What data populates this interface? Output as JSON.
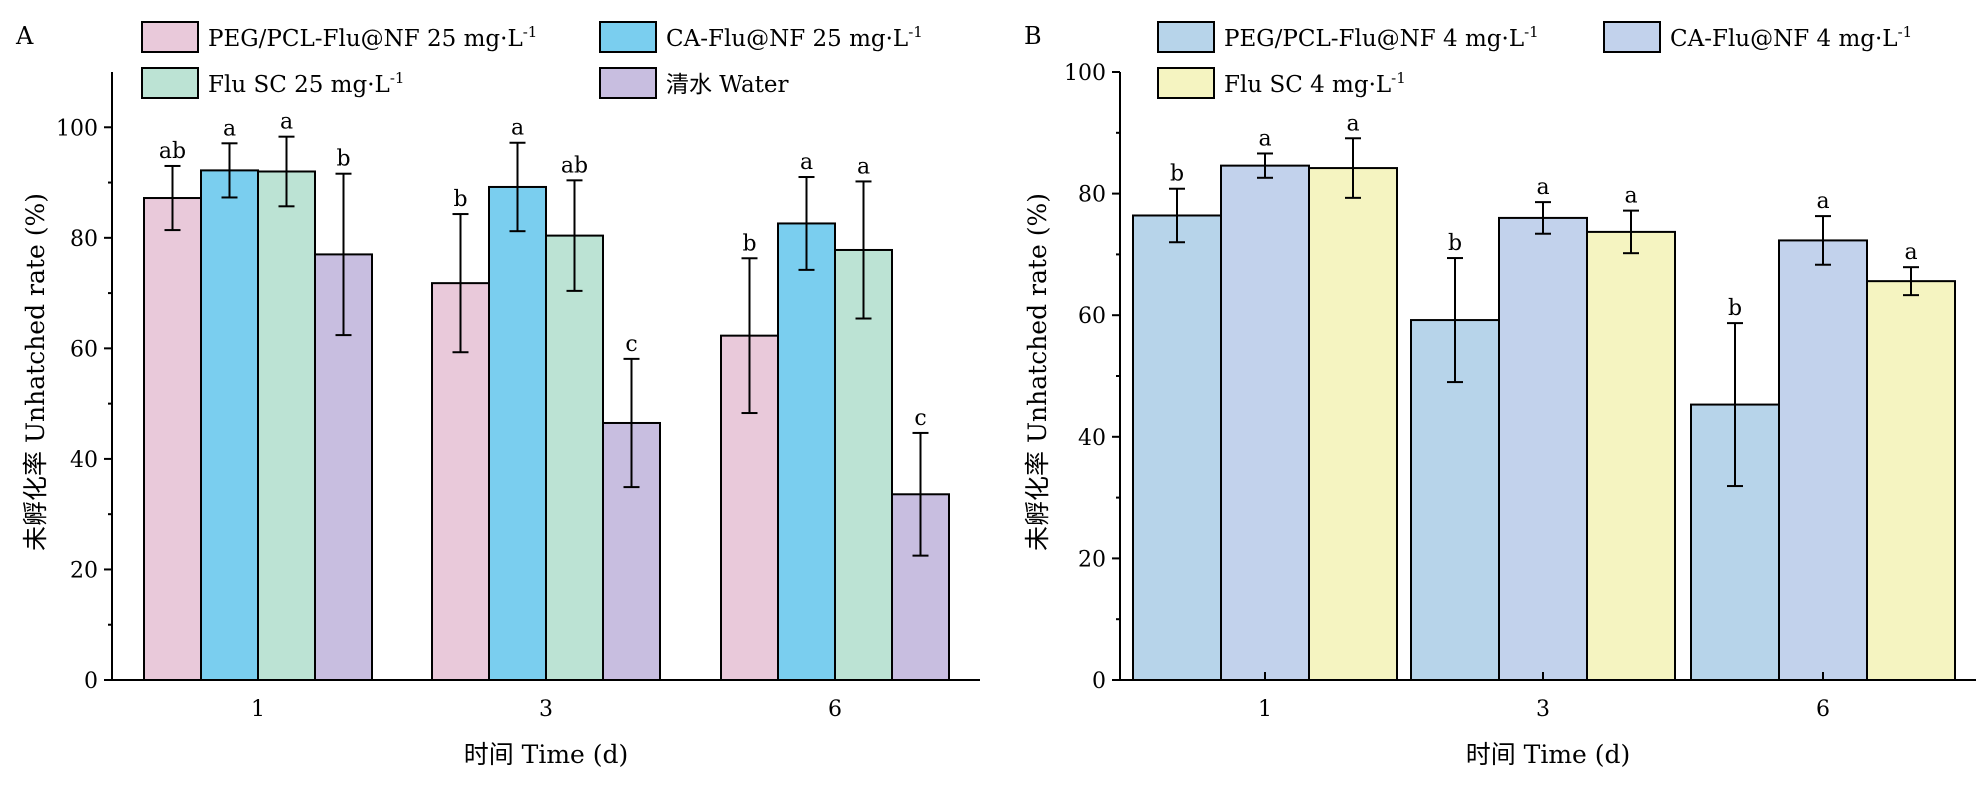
{
  "chart_data": [
    {
      "panel": "A",
      "type": "bar",
      "xlabel": "时间 Time (d)",
      "ylabel": "未孵化率 Unhatched rate (%)",
      "categories": [
        "1",
        "3",
        "6"
      ],
      "ylim": [
        0,
        110
      ],
      "yticks": [
        "0",
        "20",
        "40",
        "60",
        "80",
        "100"
      ],
      "ytick_values": [
        0,
        20,
        40,
        60,
        80,
        100
      ],
      "grid": false,
      "error_bars": true,
      "legend_position": "top",
      "series": [
        {
          "name": "PEG/PCL-Flu@NF 25 mg·L",
          "name_sup": "-1",
          "color": "#E9C9DA",
          "values": [
            87.2,
            71.8,
            62.3
          ],
          "errors": [
            5.8,
            12.5,
            14.0
          ],
          "labels": [
            "ab",
            "b",
            "b"
          ]
        },
        {
          "name": "CA-Flu@NF 25 mg·L",
          "name_sup": "-1",
          "color": "#7ACEEF",
          "values": [
            92.2,
            89.2,
            82.6
          ],
          "errors": [
            4.9,
            8.0,
            8.4
          ],
          "labels": [
            "a",
            "a",
            "a"
          ]
        },
        {
          "name": "Flu SC 25 mg·L",
          "name_sup": "-1",
          "color": "#BCE3D4",
          "values": [
            92.0,
            80.4,
            77.8
          ],
          "errors": [
            6.3,
            10.0,
            12.4
          ],
          "labels": [
            "a",
            "ab",
            "a"
          ]
        },
        {
          "name": "清水 Water",
          "name_sup": "",
          "color": "#C8BEE0",
          "values": [
            77.0,
            46.5,
            33.6
          ],
          "errors": [
            14.6,
            11.6,
            11.1
          ],
          "labels": [
            "b",
            "c",
            "c"
          ]
        }
      ]
    },
    {
      "panel": "B",
      "type": "bar",
      "xlabel": "时间 Time (d)",
      "ylabel": "未孵化率 Unhatched rate (%)",
      "categories": [
        "1",
        "3",
        "6"
      ],
      "ylim": [
        0,
        100
      ],
      "yticks": [
        "0",
        "20",
        "40",
        "60",
        "80",
        "100"
      ],
      "ytick_values": [
        0,
        20,
        40,
        60,
        80,
        100
      ],
      "grid": false,
      "error_bars": true,
      "legend_position": "top",
      "series": [
        {
          "name": "PEG/PCL-Flu@NF 4 mg·L",
          "name_sup": "-1",
          "color": "#B7D4EA",
          "values": [
            76.4,
            59.2,
            45.3
          ],
          "errors": [
            4.4,
            10.2,
            13.4
          ],
          "labels": [
            "b",
            "b",
            "b"
          ]
        },
        {
          "name": "CA-Flu@NF 4 mg·L",
          "name_sup": "-1",
          "color": "#C2D2EC",
          "values": [
            84.6,
            76.0,
            72.3
          ],
          "errors": [
            2.0,
            2.6,
            4.0
          ],
          "labels": [
            "a",
            "a",
            "a"
          ]
        },
        {
          "name": "Flu SC 4 mg·L",
          "name_sup": "-1",
          "color": "#F5F4C1",
          "values": [
            84.2,
            73.7,
            65.6
          ],
          "errors": [
            4.9,
            3.5,
            2.3
          ],
          "labels": [
            "a",
            "a",
            "a"
          ]
        }
      ]
    }
  ]
}
